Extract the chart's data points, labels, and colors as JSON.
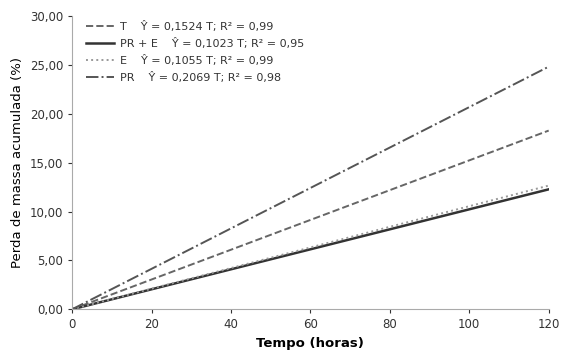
{
  "title": "",
  "xlabel": "Tempo (horas)",
  "ylabel": "Perda de massa acumulada (%)",
  "xlim": [
    0,
    120
  ],
  "ylim": [
    0,
    30
  ],
  "xticks": [
    0,
    20,
    40,
    60,
    80,
    100,
    120
  ],
  "yticks": [
    0.0,
    5.0,
    10.0,
    15.0,
    20.0,
    25.0,
    30.0
  ],
  "lines": [
    {
      "label": "T",
      "slope": 0.1524,
      "color": "#666666",
      "linestyle": "dashed",
      "linewidth": 1.4,
      "legend_eq": "Ŷ = 0,1524 T; R² = 0,99"
    },
    {
      "label": "PR + E",
      "slope": 0.1023,
      "color": "#333333",
      "linestyle": "solid",
      "linewidth": 1.8,
      "legend_eq": "Ŷ = 0,1023 T; R² = 0,95"
    },
    {
      "label": "E",
      "slope": 0.1055,
      "color": "#999999",
      "linestyle": "dotted",
      "linewidth": 1.4,
      "legend_eq": "Ŷ = 0,1055 T; R² = 0,99"
    },
    {
      "label": "PR",
      "slope": 0.2069,
      "color": "#555555",
      "linestyle": "dashdot",
      "linewidth": 1.4,
      "legend_eq": "Ŷ = 0,2069 T; R² = 0,98"
    }
  ],
  "legend_fontsize": 8.0,
  "axis_label_fontsize": 9.5,
  "tick_fontsize": 8.5,
  "background_color": "#ffffff"
}
